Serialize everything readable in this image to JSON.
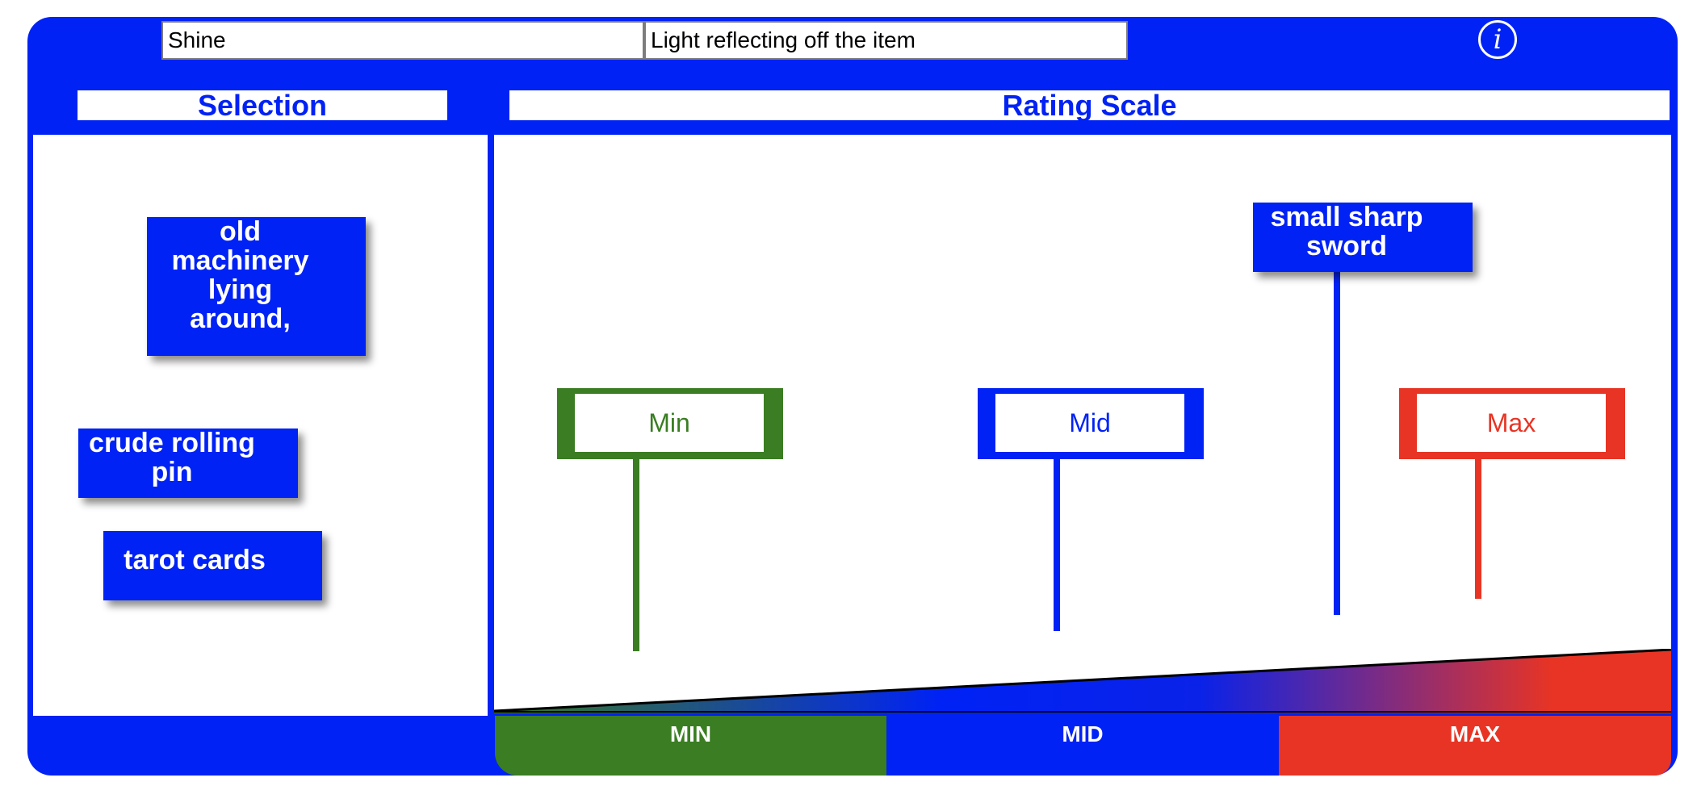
{
  "item": {
    "name": "Shine",
    "description": "Light reflecting off the item"
  },
  "info_icon": {
    "glyph": "i",
    "icon": "info-icon"
  },
  "headers": {
    "selection": "Selection",
    "rating_scale": "Rating Scale"
  },
  "selection_cards": [
    {
      "label": "old\nmachinery\nlying\naround,"
    },
    {
      "label": "crude rolling\npin"
    },
    {
      "label": "tarot cards"
    }
  ],
  "placed_cards": [
    {
      "label": "small sharp\nsword"
    }
  ],
  "markers": {
    "min": {
      "label": "Min",
      "color": "#3a7d22"
    },
    "mid": {
      "label": "Mid",
      "color": "#0022f5"
    },
    "max": {
      "label": "Max",
      "color": "#e83424"
    }
  },
  "footer": {
    "min": "MIN",
    "mid": "MID",
    "max": "MAX"
  },
  "colors": {
    "primary": "#0022f5",
    "min": "#3a7d22",
    "max": "#e83424"
  }
}
